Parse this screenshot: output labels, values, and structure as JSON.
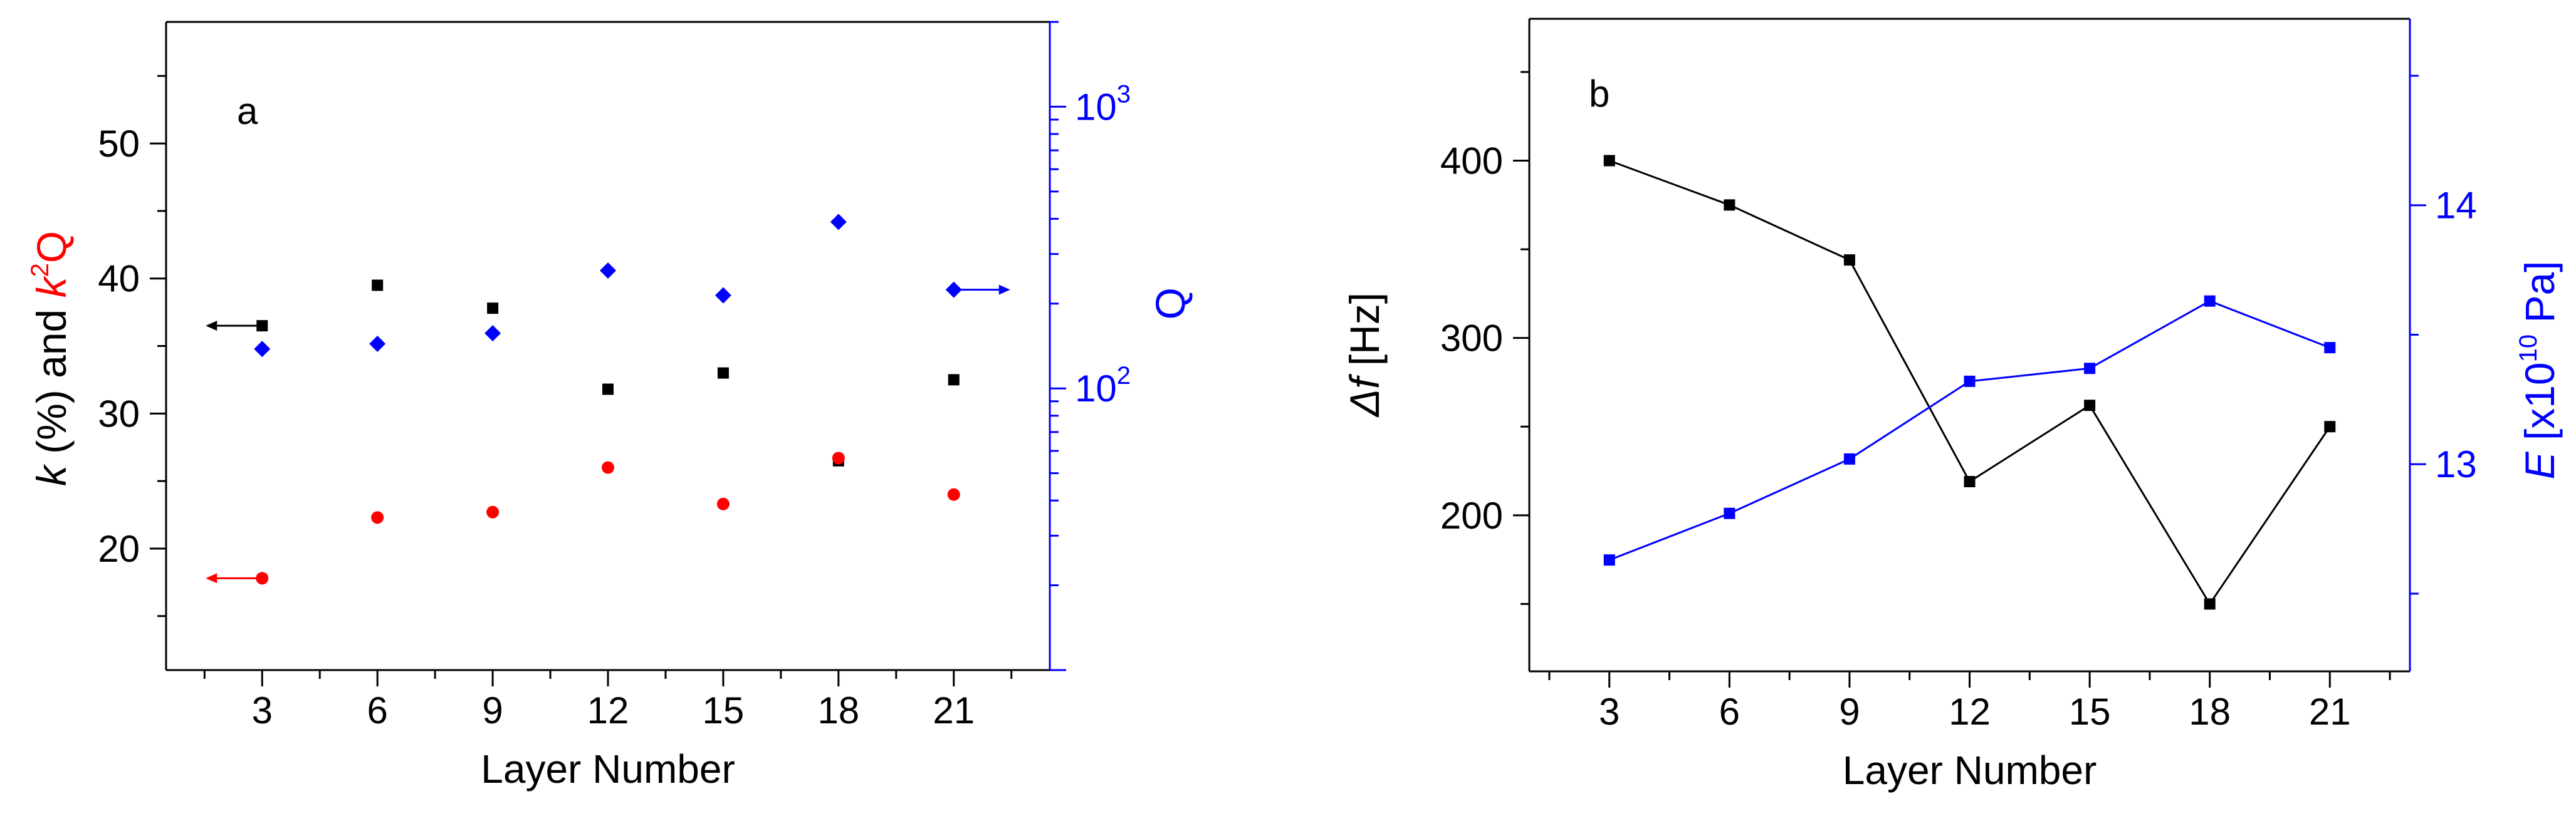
{
  "chart_data": [
    {
      "type": "scatter",
      "panel_label": "a",
      "x_ticks": [
        3,
        6,
        9,
        12,
        15,
        18,
        21
      ],
      "xlabel": "Layer Number",
      "xlim": [
        0.5,
        23.5
      ],
      "ylabel_left": {
        "part1": "k",
        "part2": " (%) and ",
        "part3": "k",
        "sup": "2",
        "part4": "Q"
      },
      "ylim_left": [
        11,
        59
      ],
      "y_left_ticks": [
        20,
        30,
        40,
        50
      ],
      "ylabel_right": "Q",
      "y_right_scale": "log",
      "ylim_right": [
        10,
        2000
      ],
      "y_right_ticks": [
        {
          "value": 100,
          "base": "10",
          "exp": "2"
        },
        {
          "value": 1000,
          "base": "10",
          "exp": "3"
        }
      ],
      "series": [
        {
          "name": "k (%)",
          "axis": "left",
          "color": "#000000",
          "marker": "square",
          "x": [
            3,
            6,
            9,
            12,
            15,
            18,
            21
          ],
          "y": [
            36.5,
            39.5,
            37.8,
            31.8,
            33.0,
            26.5,
            32.5
          ]
        },
        {
          "name": "k2Q",
          "axis": "left",
          "color": "#ff0000",
          "marker": "circle",
          "x": [
            3,
            6,
            9,
            12,
            15,
            18,
            21
          ],
          "y": [
            17.8,
            22.3,
            22.7,
            26.0,
            23.3,
            26.7,
            24.0
          ]
        },
        {
          "name": "Q",
          "axis": "right",
          "color": "#0000ff",
          "marker": "diamond",
          "x": [
            3,
            6,
            9,
            12,
            15,
            18,
            21
          ],
          "y": [
            138,
            144,
            157,
            262,
            214,
            390,
            224
          ]
        }
      ],
      "axis_arrows": [
        {
          "x": 3,
          "y": 36.5,
          "axis": "left",
          "direction": "left",
          "color": "#000000"
        },
        {
          "x": 3,
          "y": 17.8,
          "axis": "left",
          "direction": "left",
          "color": "#ff0000"
        },
        {
          "x": 21,
          "y": 224,
          "axis": "right",
          "direction": "right",
          "color": "#0000ff"
        }
      ]
    },
    {
      "type": "line",
      "panel_label": "b",
      "x_ticks": [
        3,
        6,
        9,
        12,
        15,
        18,
        21
      ],
      "xlabel": "Layer Number",
      "xlim": [
        1,
        23
      ],
      "ylabel_left": {
        "symbol": "Δf",
        "unit": " [Hz]"
      },
      "ylim_left": [
        112,
        480
      ],
      "y_left_ticks": [
        200,
        300,
        400
      ],
      "ylabel_right": {
        "symbol": "E",
        "unit_pre": " [x10",
        "sup": "10",
        "unit_post": " Pa]"
      },
      "ylim_right": [
        12.2,
        14.72
      ],
      "y_right_ticks": [
        13,
        14
      ],
      "series": [
        {
          "name": "Δf",
          "axis": "left",
          "color": "#000000",
          "marker": "square",
          "x": [
            3,
            6,
            9,
            12,
            15,
            18,
            21
          ],
          "y": [
            400,
            375,
            344,
            219,
            262,
            150,
            250
          ]
        },
        {
          "name": "E",
          "axis": "right",
          "color": "#0000ff",
          "marker": "square",
          "x": [
            3,
            6,
            9,
            12,
            15,
            18,
            21
          ],
          "y": [
            12.63,
            12.81,
            13.02,
            13.32,
            13.37,
            13.63,
            13.45
          ]
        }
      ]
    }
  ]
}
